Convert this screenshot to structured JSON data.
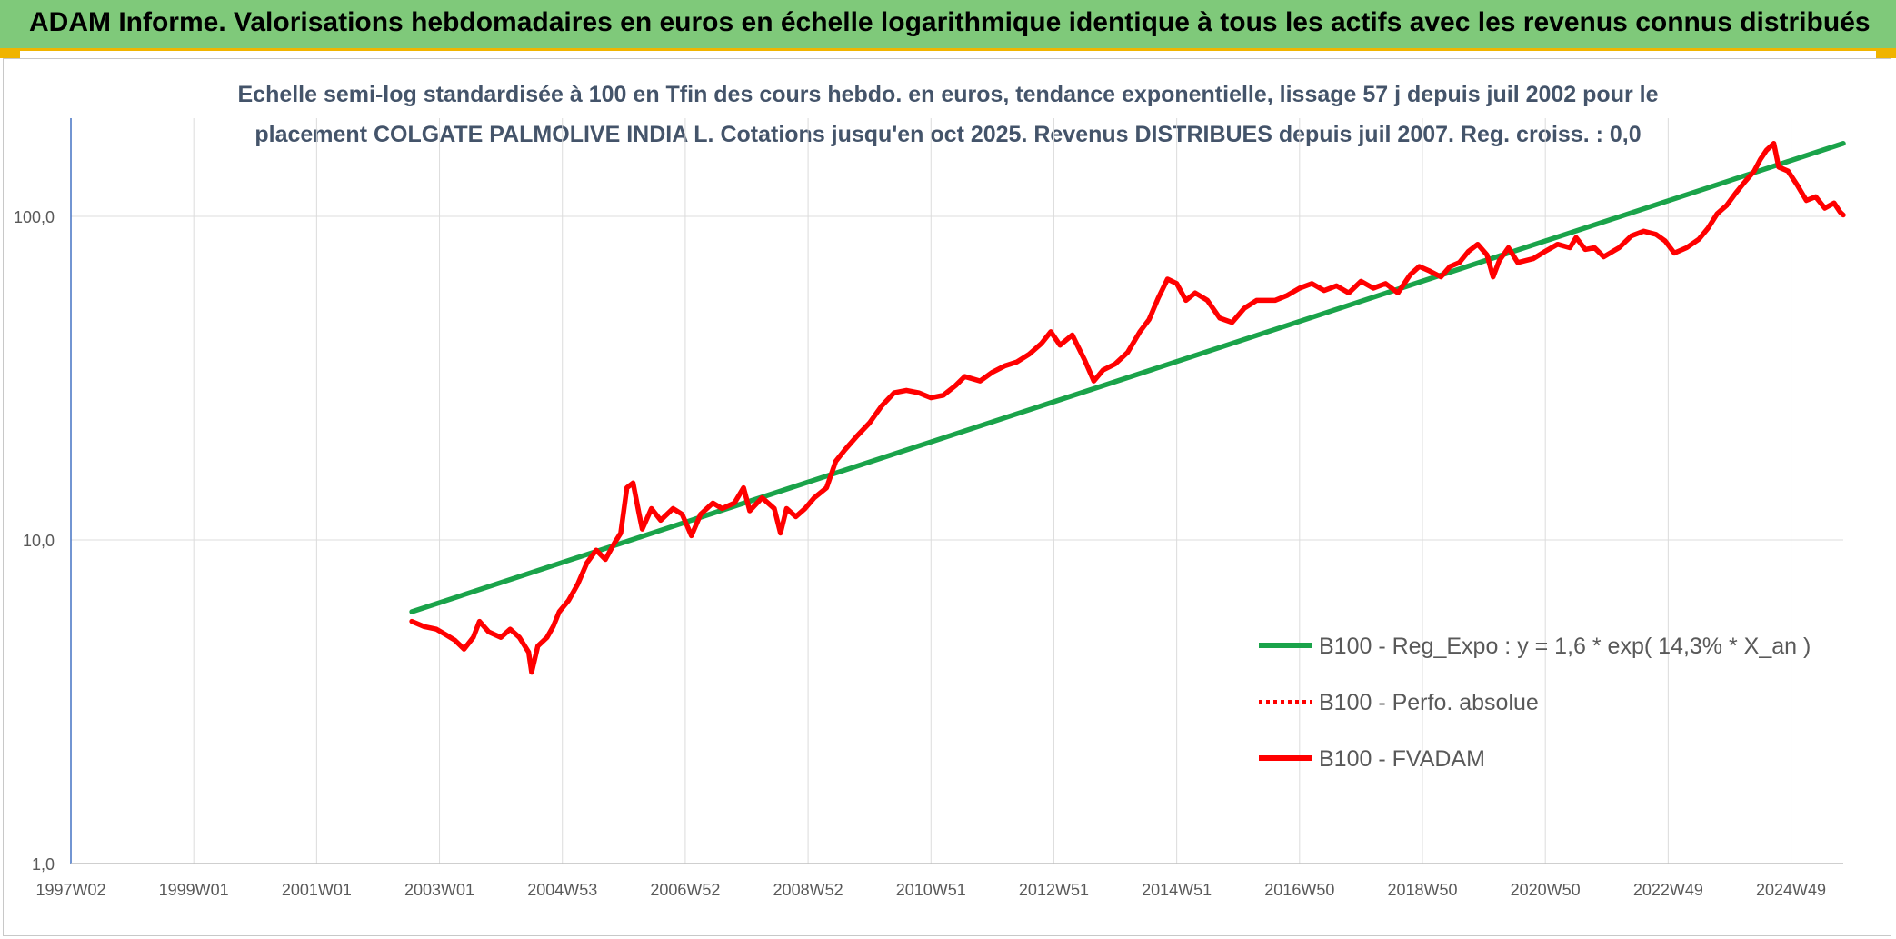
{
  "header": {
    "title": "ADAM Informe. Valorisations hebdomadaires en euros en échelle logarithmique identique à tous les actifs avec les revenus connus distribués"
  },
  "chart_data": {
    "type": "line",
    "title_line1": "Echelle semi-log standardisée à 100 en Tfin des cours hebdo. en euros, tendance exponentielle, lissage 57 j depuis juil 2002 pour le",
    "title_line2": "placement COLGATE PALMOLIVE INDIA L. Cotations jusqu'en oct 2025. Revenus DISTRIBUES depuis juil 2007. Reg. croiss. : 0,0",
    "yscale": "log",
    "ylim": [
      1,
      200
    ],
    "yticks": [
      {
        "value": 1,
        "label": "1,0"
      },
      {
        "value": 10,
        "label": "10,0"
      },
      {
        "value": 100,
        "label": "100,0"
      }
    ],
    "xlim": [
      1997.0,
      2025.85
    ],
    "xticks": [
      {
        "value": 1997.0,
        "label": "1997W02"
      },
      {
        "value": 1999.0,
        "label": "1999W01"
      },
      {
        "value": 2001.0,
        "label": "2001W01"
      },
      {
        "value": 2003.0,
        "label": "2003W01"
      },
      {
        "value": 2005.0,
        "label": "2004W53"
      },
      {
        "value": 2007.0,
        "label": "2006W52"
      },
      {
        "value": 2009.0,
        "label": "2008W52"
      },
      {
        "value": 2011.0,
        "label": "2010W51"
      },
      {
        "value": 2013.0,
        "label": "2012W51"
      },
      {
        "value": 2015.0,
        "label": "2014W51"
      },
      {
        "value": 2017.0,
        "label": "2016W50"
      },
      {
        "value": 2019.0,
        "label": "2018W50"
      },
      {
        "value": 2021.0,
        "label": "2020W50"
      },
      {
        "value": 2023.0,
        "label": "2022W49"
      },
      {
        "value": 2025.0,
        "label": "2024W49"
      }
    ],
    "grid": true,
    "legend_position": "bottom-right",
    "series": [
      {
        "name": "B100 - Reg_Expo : y = 1,6 * exp( 14,3% *  X_an )",
        "color": "#1aa34a",
        "style": "solid",
        "points": [
          [
            2002.55,
            6.0
          ],
          [
            2025.85,
            168
          ]
        ]
      },
      {
        "name": "B100 - Perfo. absolue",
        "color": "#ff0000",
        "style": "dotted",
        "points": []
      },
      {
        "name": "B100 - FVADAM",
        "color": "#ff0000",
        "style": "solid",
        "points": [
          [
            2002.55,
            5.6
          ],
          [
            2002.75,
            5.4
          ],
          [
            2002.95,
            5.3
          ],
          [
            2003.1,
            5.1
          ],
          [
            2003.25,
            4.9
          ],
          [
            2003.4,
            4.6
          ],
          [
            2003.55,
            5.0
          ],
          [
            2003.65,
            5.6
          ],
          [
            2003.8,
            5.2
          ],
          [
            2004.0,
            5.0
          ],
          [
            2004.15,
            5.3
          ],
          [
            2004.3,
            5.0
          ],
          [
            2004.45,
            4.5
          ],
          [
            2004.5,
            3.9
          ],
          [
            2004.6,
            4.7
          ],
          [
            2004.75,
            5.0
          ],
          [
            2004.85,
            5.4
          ],
          [
            2004.95,
            6.0
          ],
          [
            2005.1,
            6.5
          ],
          [
            2005.25,
            7.3
          ],
          [
            2005.4,
            8.5
          ],
          [
            2005.55,
            9.3
          ],
          [
            2005.7,
            8.7
          ],
          [
            2005.85,
            9.8
          ],
          [
            2005.95,
            10.5
          ],
          [
            2006.05,
            14.5
          ],
          [
            2006.15,
            15.0
          ],
          [
            2006.25,
            12.0
          ],
          [
            2006.3,
            10.8
          ],
          [
            2006.45,
            12.5
          ],
          [
            2006.6,
            11.5
          ],
          [
            2006.8,
            12.5
          ],
          [
            2006.95,
            12.0
          ],
          [
            2007.1,
            10.3
          ],
          [
            2007.25,
            12.0
          ],
          [
            2007.45,
            13.0
          ],
          [
            2007.6,
            12.5
          ],
          [
            2007.8,
            13.0
          ],
          [
            2007.95,
            14.5
          ],
          [
            2008.05,
            12.3
          ],
          [
            2008.25,
            13.5
          ],
          [
            2008.45,
            12.5
          ],
          [
            2008.55,
            10.5
          ],
          [
            2008.65,
            12.5
          ],
          [
            2008.8,
            11.8
          ],
          [
            2008.95,
            12.5
          ],
          [
            2009.1,
            13.5
          ],
          [
            2009.3,
            14.5
          ],
          [
            2009.45,
            17.5
          ],
          [
            2009.6,
            19.0
          ],
          [
            2009.8,
            21.0
          ],
          [
            2010.0,
            23.0
          ],
          [
            2010.2,
            26.0
          ],
          [
            2010.4,
            28.5
          ],
          [
            2010.6,
            29.0
          ],
          [
            2010.8,
            28.5
          ],
          [
            2011.0,
            27.5
          ],
          [
            2011.2,
            28.0
          ],
          [
            2011.4,
            30.0
          ],
          [
            2011.55,
            32.0
          ],
          [
            2011.8,
            31.0
          ],
          [
            2012.0,
            33.0
          ],
          [
            2012.2,
            34.5
          ],
          [
            2012.4,
            35.5
          ],
          [
            2012.6,
            37.5
          ],
          [
            2012.8,
            40.5
          ],
          [
            2012.95,
            44.0
          ],
          [
            2013.1,
            40.0
          ],
          [
            2013.3,
            43.0
          ],
          [
            2013.5,
            36.0
          ],
          [
            2013.65,
            31.0
          ],
          [
            2013.8,
            33.5
          ],
          [
            2014.0,
            35.0
          ],
          [
            2014.2,
            38.0
          ],
          [
            2014.4,
            44.0
          ],
          [
            2014.55,
            48.0
          ],
          [
            2014.7,
            56.0
          ],
          [
            2014.85,
            64.0
          ],
          [
            2015.0,
            62.0
          ],
          [
            2015.15,
            55.0
          ],
          [
            2015.3,
            58.0
          ],
          [
            2015.5,
            55.0
          ],
          [
            2015.7,
            48.5
          ],
          [
            2015.9,
            47.0
          ],
          [
            2016.1,
            52.0
          ],
          [
            2016.3,
            55.0
          ],
          [
            2016.6,
            55.0
          ],
          [
            2016.8,
            57.0
          ],
          [
            2017.0,
            60.0
          ],
          [
            2017.2,
            62.0
          ],
          [
            2017.4,
            59.0
          ],
          [
            2017.6,
            61.0
          ],
          [
            2017.8,
            58.0
          ],
          [
            2018.0,
            63.0
          ],
          [
            2018.2,
            60.0
          ],
          [
            2018.4,
            62.0
          ],
          [
            2018.6,
            58.0
          ],
          [
            2018.8,
            66.0
          ],
          [
            2018.95,
            70.0
          ],
          [
            2019.1,
            68.0
          ],
          [
            2019.3,
            65.0
          ],
          [
            2019.45,
            70.0
          ],
          [
            2019.6,
            72.0
          ],
          [
            2019.75,
            78.0
          ],
          [
            2019.9,
            82.0
          ],
          [
            2020.05,
            76.0
          ],
          [
            2020.15,
            65.0
          ],
          [
            2020.25,
            73.0
          ],
          [
            2020.4,
            80.0
          ],
          [
            2020.55,
            72.0
          ],
          [
            2020.8,
            74.0
          ],
          [
            2021.0,
            78.0
          ],
          [
            2021.2,
            82.0
          ],
          [
            2021.4,
            80.0
          ],
          [
            2021.5,
            86.0
          ],
          [
            2021.65,
            79.0
          ],
          [
            2021.8,
            80.0
          ],
          [
            2021.95,
            75.0
          ],
          [
            2022.2,
            80.0
          ],
          [
            2022.4,
            87.0
          ],
          [
            2022.6,
            90.0
          ],
          [
            2022.8,
            88.0
          ],
          [
            2022.95,
            84.0
          ],
          [
            2023.1,
            77.0
          ],
          [
            2023.3,
            80.0
          ],
          [
            2023.5,
            85.0
          ],
          [
            2023.65,
            92.0
          ],
          [
            2023.8,
            102.0
          ],
          [
            2023.95,
            108.0
          ],
          [
            2024.1,
            118.0
          ],
          [
            2024.25,
            128.0
          ],
          [
            2024.4,
            138.0
          ],
          [
            2024.5,
            150.0
          ],
          [
            2024.6,
            160.0
          ],
          [
            2024.72,
            168.0
          ],
          [
            2024.8,
            142.0
          ],
          [
            2024.95,
            138.0
          ],
          [
            2025.1,
            125.0
          ],
          [
            2025.25,
            112.0
          ],
          [
            2025.4,
            115.0
          ],
          [
            2025.55,
            106.0
          ],
          [
            2025.7,
            110.0
          ],
          [
            2025.8,
            103.0
          ],
          [
            2025.85,
            101.0
          ]
        ]
      }
    ]
  }
}
